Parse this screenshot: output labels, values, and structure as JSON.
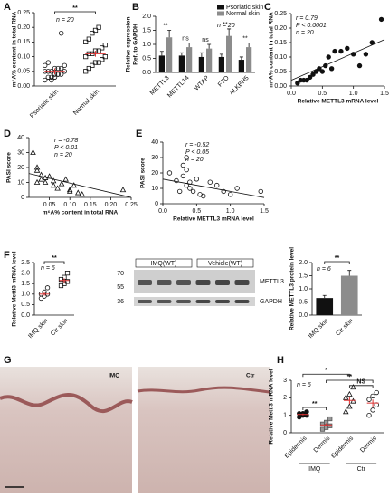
{
  "chart_data": [
    {
      "type": "dot",
      "label": "A",
      "ylabel": [
        "m⁶A% content in total RNA"
      ],
      "ylim": [
        0,
        0.25
      ],
      "yticks": [
        {
          "value": 0,
          "label": "0.00"
        },
        0.05,
        {
          "value": 0.1,
          "label": "0.10"
        },
        0.15,
        {
          "value": 0.2,
          "label": "0.20"
        },
        0.25
      ],
      "significance": "**",
      "annotations": [
        "n = 20"
      ],
      "series": [
        {
          "name": "Psoriatic skin",
          "marker": "circle",
          "color": "#111",
          "values": [
            0.02,
            0.03,
            0.03,
            0.04,
            0.04,
            0.04,
            0.05,
            0.05,
            0.05,
            0.05,
            0.06,
            0.06,
            0.06,
            0.07,
            0.07,
            0.08,
            0.02,
            0.03,
            0.04,
            0.18
          ],
          "mean": 0.05,
          "error": 0.01
        },
        {
          "name": "Normal skin",
          "marker": "square",
          "color": "#111",
          "values": [
            0.05,
            0.06,
            0.07,
            0.08,
            0.08,
            0.09,
            0.1,
            0.1,
            0.11,
            0.11,
            0.12,
            0.12,
            0.13,
            0.14,
            0.15,
            0.16,
            0.18,
            0.19,
            0.2,
            0.09
          ],
          "mean": 0.11,
          "error": 0.01
        }
      ]
    },
    {
      "type": "bar",
      "label": "B",
      "ylabel": [
        "Relative expression",
        "Ref. to GAPDH"
      ],
      "ylim": [
        0,
        2
      ],
      "yticks": [
        {
          "value": 0,
          "label": "0.0"
        },
        0.5,
        {
          "value": 1,
          "label": "1.0"
        },
        1.5,
        {
          "value": 2,
          "label": "2.0"
        }
      ],
      "categories": [
        "METTL3",
        "METTL14",
        "WTAP",
        "FTO",
        "ALKBH5"
      ],
      "significance": [
        "**",
        "ns",
        "ns",
        "**",
        "**"
      ],
      "annotations": [
        "n = 20"
      ],
      "series": [
        {
          "name": "Psoriatic skin",
          "color": "#111111",
          "values": [
            0.6,
            0.6,
            0.55,
            0.55,
            0.45
          ],
          "errors": [
            0.15,
            0.1,
            0.15,
            0.1,
            0.1
          ]
        },
        {
          "name": "Normal skin",
          "color": "#8c8c8c",
          "values": [
            1.25,
            0.9,
            0.85,
            1.3,
            0.9
          ],
          "errors": [
            0.25,
            0.15,
            0.15,
            0.25,
            0.15
          ]
        }
      ]
    },
    {
      "type": "scatter",
      "label": "C",
      "marker": "circle",
      "color": "#111",
      "fill": "#111",
      "xlabel": "Relative METTL3 mRNA level",
      "ylabel": [
        "m⁶A% content in total RNA"
      ],
      "xlim": [
        0,
        1.5
      ],
      "xticks": [
        {
          "value": 0,
          "label": "0.0"
        },
        0.5,
        {
          "value": 1,
          "label": "1.0"
        },
        1.5
      ],
      "ylim": [
        0,
        0.25
      ],
      "yticks": [
        {
          "value": 0,
          "label": "0.00"
        },
        0.05,
        {
          "value": 0.1,
          "label": "0.10"
        },
        0.15,
        {
          "value": 0.2,
          "label": "0.20"
        },
        0.25
      ],
      "annotations": [
        "r = 0.79",
        "P < 0.0001",
        "n = 20"
      ],
      "x": [
        0.1,
        0.2,
        0.25,
        0.3,
        0.35,
        0.4,
        0.45,
        0.5,
        0.55,
        0.6,
        0.65,
        0.7,
        0.8,
        0.9,
        1.0,
        1.1,
        1.2,
        1.3,
        1.45,
        0.15
      ],
      "y": [
        0.01,
        0.02,
        0.02,
        0.03,
        0.04,
        0.05,
        0.06,
        0.05,
        0.07,
        0.1,
        0.06,
        0.12,
        0.12,
        0.13,
        0.11,
        0.07,
        0.11,
        0.15,
        0.23,
        0.02
      ],
      "fit": {
        "x": [
          0,
          1.5
        ],
        "y": [
          0.02,
          0.16
        ]
      }
    },
    {
      "type": "scatter",
      "label": "D",
      "marker": "triangle",
      "color": "#111",
      "fill": "none",
      "xlabel": "m⁶A% content in total RNA",
      "ylabel": [
        "PASI score"
      ],
      "xlim": [
        0,
        0.25
      ],
      "xticks": [
        0.05,
        {
          "value": 0.1,
          "label": "0.10"
        },
        0.15,
        {
          "value": 0.2,
          "label": "0.20"
        },
        0.25
      ],
      "ylim": [
        0,
        40
      ],
      "yticks": [
        0,
        10,
        20,
        30,
        40
      ],
      "annotations": [
        "r = -0.78",
        "P < 0.01",
        "n = 20"
      ],
      "x": [
        0.01,
        0.02,
        0.02,
        0.03,
        0.03,
        0.04,
        0.04,
        0.05,
        0.06,
        0.06,
        0.07,
        0.08,
        0.09,
        0.1,
        0.1,
        0.11,
        0.12,
        0.13,
        0.02,
        0.23
      ],
      "y": [
        30,
        20,
        18,
        15,
        12,
        13,
        10,
        14,
        11,
        8,
        6,
        9,
        12,
        5,
        4,
        8,
        3,
        2,
        10,
        5
      ],
      "fit": {
        "x": [
          0,
          0.25
        ],
        "y": [
          16,
          0
        ]
      }
    },
    {
      "type": "scatter",
      "label": "E",
      "marker": "circle",
      "color": "#111",
      "fill": "none",
      "xlabel": "Relative METTL3 mRNA level",
      "ylabel": [
        "PASI score"
      ],
      "xlim": [
        0,
        1.5
      ],
      "xticks": [
        {
          "value": 0,
          "label": "0.0"
        },
        0.5,
        {
          "value": 1,
          "label": "1.0"
        },
        1.5
      ],
      "ylim": [
        0,
        40
      ],
      "yticks": [
        0,
        10,
        20,
        30,
        40
      ],
      "annotations": [
        "r = -0.52",
        "P < 0.05",
        "n = 20"
      ],
      "x": [
        0.1,
        0.2,
        0.25,
        0.3,
        0.3,
        0.35,
        0.35,
        0.4,
        0.4,
        0.45,
        0.5,
        0.55,
        0.6,
        0.7,
        0.8,
        0.9,
        1.0,
        1.1,
        1.45,
        0.35
      ],
      "y": [
        20,
        15,
        8,
        25,
        18,
        12,
        30,
        10,
        14,
        8,
        16,
        6,
        5,
        14,
        12,
        8,
        6,
        10,
        8,
        22
      ],
      "fit": {
        "x": [
          0,
          1.5
        ],
        "y": [
          16,
          4
        ]
      }
    },
    {
      "type": "dot",
      "label": "F",
      "ylabel": [
        "Relative Mettl3 mRNA level"
      ],
      "ylim": [
        0,
        2.5
      ],
      "yticks": [
        {
          "value": 0,
          "label": "0.0"
        },
        0.5,
        {
          "value": 1,
          "label": "1.0"
        },
        1.5,
        {
          "value": 2,
          "label": "2.0"
        },
        2.5
      ],
      "significance": "**",
      "annotations": [
        "n = 6"
      ],
      "series": [
        {
          "name": "IMQ skin",
          "marker": "circle",
          "color": "#111",
          "values": [
            0.8,
            0.9,
            1.0,
            1.0,
            1.1,
            1.3
          ],
          "mean": 1.0,
          "error": 0.08
        },
        {
          "name": "Ctr skin",
          "marker": "square",
          "color": "#111",
          "values": [
            1.4,
            1.5,
            1.6,
            1.7,
            1.8,
            2.0
          ],
          "mean": 1.65,
          "error": 0.1
        }
      ]
    },
    {
      "type": "blot",
      "groups": [
        "IMQ(WT)",
        "Vehicle(WT)"
      ],
      "proteins": [
        "METTL3",
        "GAPDH"
      ],
      "markers": [
        70,
        55,
        36
      ]
    },
    {
      "type": "bar",
      "ylabel": [
        "Relative METTL3 protein level"
      ],
      "ylim": [
        0,
        2
      ],
      "yticks": [
        {
          "value": 0,
          "label": "0.0"
        },
        0.5,
        {
          "value": 1,
          "label": "1.0"
        },
        1.5,
        {
          "value": 2,
          "label": "2.0"
        }
      ],
      "categories": [
        "IMQ skin",
        "Ctr skin"
      ],
      "values": [
        0.65,
        1.5
      ],
      "errors": [
        0.1,
        0.2
      ],
      "colors": [
        "#111111",
        "#8c8c8c"
      ],
      "significance": "**",
      "annotations": [
        "n = 6"
      ]
    },
    {
      "type": "image",
      "label": "G",
      "image_labels": [
        "IMQ",
        "Ctr"
      ]
    },
    {
      "type": "dot",
      "label": "H",
      "ylabel": [
        "Relative Mettl3 mRNA level"
      ],
      "ylim": [
        0,
        3
      ],
      "yticks": [
        0,
        1,
        2,
        3
      ],
      "groups": [
        "IMQ",
        "Ctr"
      ],
      "brackets": [
        "*",
        "NS",
        "**",
        "**"
      ],
      "annotations": [
        "n = 6"
      ],
      "series": [
        {
          "name": "Epidermis",
          "marker": "circle",
          "color": "#111",
          "fill": "#111",
          "values": [
            0.9,
            1.0,
            1.0,
            1.1,
            1.1,
            1.2
          ],
          "mean": 1.05,
          "error": 0.05
        },
        {
          "name": "Dermis",
          "marker": "square",
          "color": "#555",
          "fill": "#999",
          "values": [
            0.2,
            0.3,
            0.4,
            0.5,
            0.6,
            0.8
          ],
          "mean": 0.45,
          "error": 0.09
        },
        {
          "name": "Epidermis",
          "marker": "triangle",
          "color": "#111",
          "values": [
            1.2,
            1.5,
            1.8,
            2.0,
            2.2,
            2.6
          ],
          "mean": 1.85,
          "error": 0.2
        },
        {
          "name": "Dermis",
          "marker": "circle",
          "color": "#111",
          "values": [
            1.0,
            1.3,
            1.6,
            1.9,
            2.1,
            2.3
          ],
          "mean": 1.7,
          "error": 0.2
        }
      ]
    }
  ]
}
